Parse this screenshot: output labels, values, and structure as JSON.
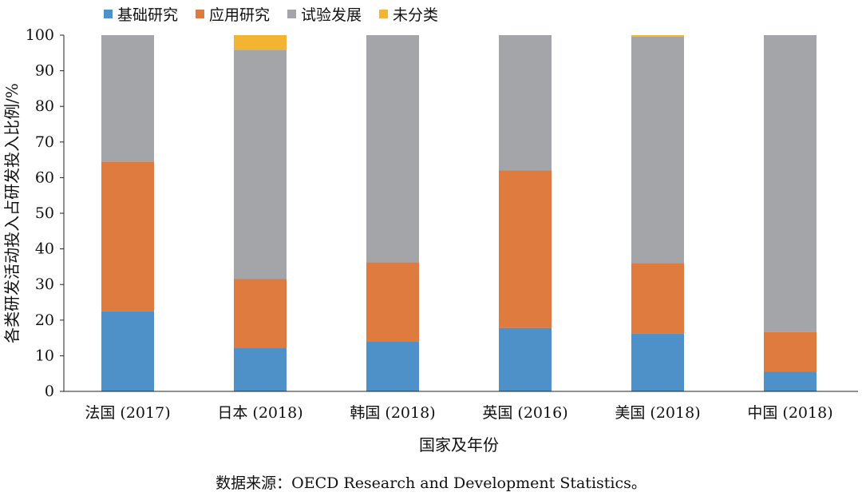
{
  "chart_data": {
    "type": "bar",
    "stacked": true,
    "categories": [
      "法国 (2017)",
      "日本 (2018)",
      "韩国 (2018)",
      "英国 (2016)",
      "美国 (2018)",
      "中国 (2018)"
    ],
    "series": [
      {
        "name": "基础研究",
        "color": "#4e90c8",
        "values": [
          22.5,
          12.3,
          14.0,
          17.8,
          16.3,
          5.5
        ]
      },
      {
        "name": "应用研究",
        "color": "#e07b3f",
        "values": [
          42.0,
          19.3,
          22.2,
          44.2,
          19.7,
          11.1
        ]
      },
      {
        "name": "试验发展",
        "color": "#a3a5a8",
        "values": [
          35.5,
          64.3,
          63.8,
          38.0,
          63.6,
          83.4
        ]
      },
      {
        "name": "未分类",
        "color": "#f2b431",
        "values": [
          0.0,
          4.1,
          0.0,
          0.0,
          0.4,
          0.0
        ]
      }
    ],
    "ylim": [
      0,
      100
    ],
    "yticks": [
      0,
      10,
      20,
      30,
      40,
      50,
      60,
      70,
      80,
      90,
      100
    ],
    "ylabel": "各类研发活动投入占研发投入比例/%",
    "xlabel": "国家及年份",
    "legend_position": "top"
  },
  "source_note": "数据来源：OECD Research and Development Statistics。"
}
